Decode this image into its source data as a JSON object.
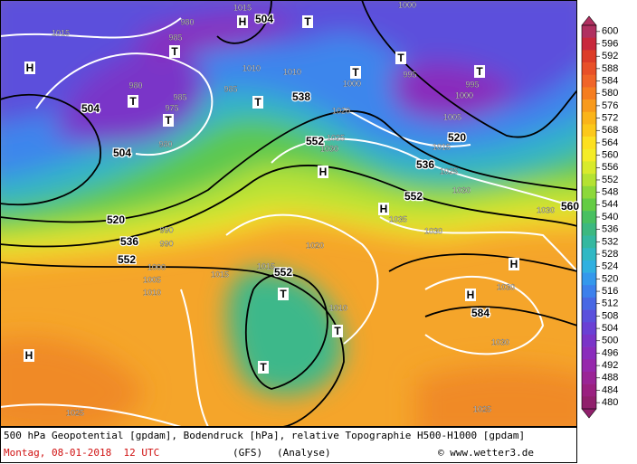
{
  "map": {
    "labels": [
      "504",
      "504",
      "504",
      "520",
      "536",
      "552",
      "538",
      "552",
      "536",
      "552",
      "520",
      "552",
      "584",
      "560",
      "1015",
      "980",
      "985",
      "1015",
      "1010",
      "1010",
      "1000",
      "995",
      "1000",
      "1000",
      "995",
      "1005",
      "1015",
      "1020",
      "1025",
      "1030",
      "1025",
      "1030",
      "1035",
      "1030",
      "1030",
      "1020",
      "1015",
      "1015",
      "1010",
      "1030",
      "1030",
      "1025",
      "1025",
      "980",
      "985",
      "975",
      "980",
      "985",
      "990",
      "990",
      "1000",
      "1005",
      "1010",
      "H",
      "H",
      "T",
      "T",
      "T",
      "T",
      "T",
      "T",
      "T",
      "T",
      "H",
      "H",
      "T",
      "T",
      "T",
      "H",
      "H",
      "H"
    ]
  },
  "colorbar": {
    "levels": [
      600,
      596,
      592,
      588,
      584,
      580,
      576,
      572,
      568,
      564,
      560,
      556,
      552,
      548,
      544,
      540,
      536,
      532,
      528,
      524,
      520,
      516,
      512,
      508,
      504,
      500,
      496,
      492,
      488,
      484,
      480
    ],
    "colors": [
      "#b03060",
      "#c8283c",
      "#dc3c28",
      "#e85028",
      "#f06428",
      "#f57d20",
      "#f89a1c",
      "#fab41a",
      "#fcc81a",
      "#fce020",
      "#f4ec28",
      "#d8ea2c",
      "#b4e232",
      "#8cd83a",
      "#64cc44",
      "#48c060",
      "#3cb880",
      "#34b8a0",
      "#30b8c4",
      "#30b0e0",
      "#3498ec",
      "#3c80ec",
      "#4868e4",
      "#5a50dc",
      "#6a40d4",
      "#7a34c8",
      "#8a2cbc",
      "#9628ac",
      "#9a2496",
      "#9a2080",
      "#90206c"
    ]
  },
  "footer": {
    "line1": "500 hPa Geopotential [gpdam], Bodendruck [hPa], relative Topographie H500-H1000 [gpdam]",
    "date": "Montag, 08-01-2018  12 UTC",
    "model": "(GFS)",
    "run": "(Analyse)",
    "credit": "© www.wetter3.de"
  }
}
